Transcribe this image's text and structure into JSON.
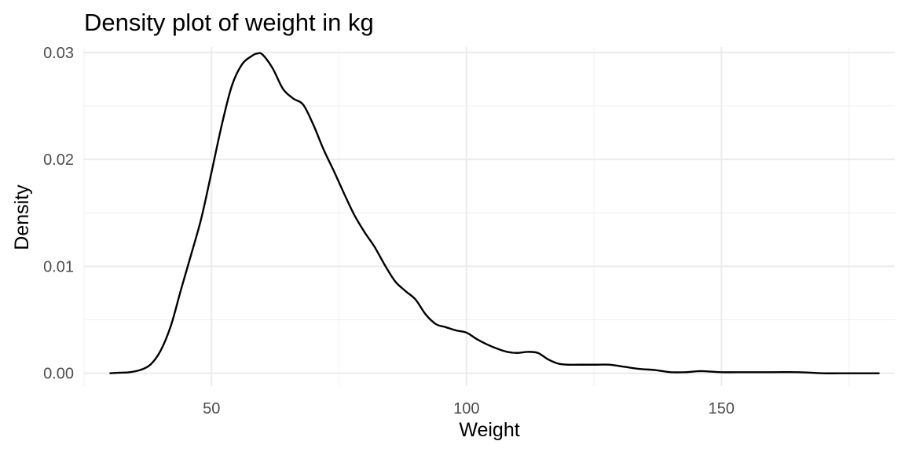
{
  "chart_data": {
    "type": "line",
    "title": "Density plot of weight in kg",
    "xlabel": "Weight",
    "ylabel": "Density",
    "xlim": [
      25,
      184
    ],
    "ylim": [
      -0.0012,
      0.0305
    ],
    "x_ticks": [
      50,
      100,
      150
    ],
    "x_tick_labels": [
      "50",
      "100",
      "150"
    ],
    "y_ticks": [
      0,
      0.01,
      0.02,
      0.03
    ],
    "y_tick_labels": [
      "0.00",
      "0.01",
      "0.02",
      "0.03"
    ],
    "x_minor_ticks": [
      25,
      75,
      125,
      175
    ],
    "y_minor_ticks": [
      0.005,
      0.015,
      0.025
    ],
    "grid": true,
    "legend": "none",
    "series": [
      {
        "color": "#000000",
        "x": [
          30,
          32,
          34,
          36,
          38,
          40,
          42,
          44,
          46,
          48,
          50,
          52,
          54,
          56,
          58,
          59,
          60,
          62,
          64,
          66,
          68,
          70,
          72,
          74,
          76,
          78,
          80,
          82,
          84,
          86,
          88,
          90,
          92,
          94,
          96,
          98,
          100,
          102,
          104,
          106,
          108,
          110,
          112,
          114,
          116,
          118,
          120,
          122,
          125,
          128,
          131,
          134,
          137,
          140,
          143,
          146,
          150,
          155,
          160,
          165,
          170,
          175,
          181
        ],
        "y": [
          0.0,
          5e-05,
          0.0001,
          0.0003,
          0.0008,
          0.0021,
          0.0044,
          0.0078,
          0.0111,
          0.0145,
          0.0188,
          0.0232,
          0.0269,
          0.0289,
          0.0297,
          0.0299,
          0.0298,
          0.0285,
          0.0266,
          0.0257,
          0.0251,
          0.0232,
          0.0209,
          0.0189,
          0.0168,
          0.0148,
          0.0132,
          0.0118,
          0.0101,
          0.0086,
          0.0077,
          0.0069,
          0.0055,
          0.0046,
          0.0043,
          0.004,
          0.0038,
          0.0032,
          0.0027,
          0.0023,
          0.002,
          0.0019,
          0.002,
          0.0019,
          0.0013,
          0.0009,
          0.0008,
          0.0008,
          0.0008,
          0.0008,
          0.0006,
          0.0004,
          0.0003,
          0.0001,
          0.0001,
          0.0002,
          0.0001,
          0.0001,
          0.0001,
          0.0001,
          0.0,
          0.0,
          0.0
        ]
      }
    ]
  }
}
